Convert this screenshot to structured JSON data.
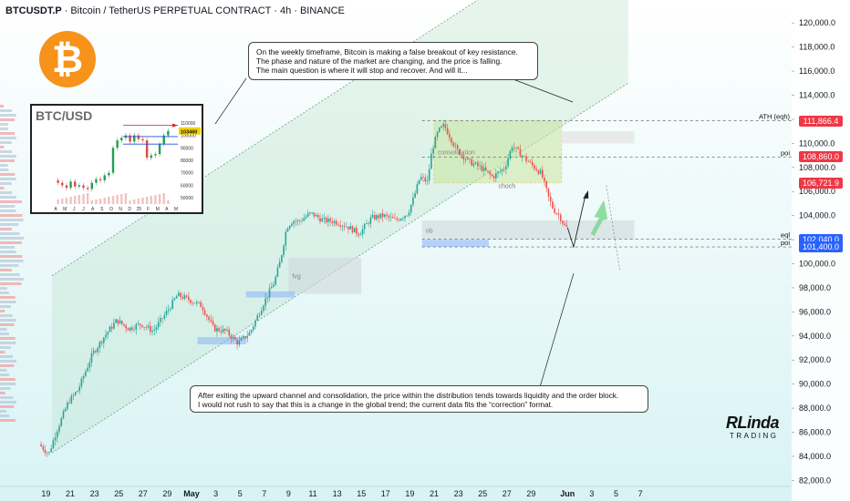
{
  "header": {
    "symbol": "BTCUSDT.P",
    "description": "· Bitcoin / TetherUS PERPETUAL CONTRACT · 4h · BINANCE"
  },
  "chart_data": {
    "type": "candlestick",
    "symbol": "BTCUSDT.P",
    "timeframe": "4h",
    "exchange": "BINANCE",
    "ylim": [
      81500,
      121000
    ],
    "y_ticks": [
      "120,000.0",
      "118,000.0",
      "116,000.0",
      "114,000.0",
      "112,000.0",
      "110,000.0",
      "108,000.0",
      "106,000.0",
      "104,000.0",
      "102,000.0",
      "100,000.0",
      "98,000.0",
      "96,000.0",
      "94,000.0",
      "92,000.0",
      "90,000.0",
      "88,000.0",
      "86,000.0",
      "84,000.0",
      "82,000.0"
    ],
    "x_ticks": [
      "19",
      "21",
      "23",
      "25",
      "27",
      "29",
      "May",
      "3",
      "5",
      "7",
      "9",
      "11",
      "13",
      "15",
      "17",
      "19",
      "21",
      "23",
      "25",
      "27",
      "29",
      "Jun",
      "3",
      "5",
      "7"
    ],
    "x_tick_days": [
      -12,
      -10,
      -8,
      -6,
      -4,
      -2,
      0,
      2,
      4,
      6,
      8,
      10,
      12,
      14,
      16,
      18,
      20,
      22,
      24,
      26,
      28,
      31,
      33,
      35,
      37
    ],
    "price_path": [
      [
        -12.4,
        85000
      ],
      [
        -11.6,
        84200
      ],
      [
        -11,
        86000
      ],
      [
        -10,
        88500
      ],
      [
        -9.2,
        89500
      ],
      [
        -8,
        92500
      ],
      [
        -7,
        94000
      ],
      [
        -6,
        95300
      ],
      [
        -5,
        94600
      ],
      [
        -4,
        95000
      ],
      [
        -3,
        94400
      ],
      [
        -2,
        95800
      ],
      [
        -1,
        97400
      ],
      [
        0,
        97000
      ],
      [
        1,
        96500
      ],
      [
        2,
        94600
      ],
      [
        3,
        94400
      ],
      [
        4,
        93400
      ],
      [
        5,
        94300
      ],
      [
        6,
        96500
      ],
      [
        7,
        98500
      ],
      [
        7.5,
        100300
      ],
      [
        8,
        103000
      ],
      [
        8.5,
        103600
      ],
      [
        9,
        103500
      ],
      [
        10,
        104200
      ],
      [
        11,
        103600
      ],
      [
        12,
        103500
      ],
      [
        13,
        103100
      ],
      [
        14,
        102500
      ],
      [
        15,
        103800
      ],
      [
        16,
        104000
      ],
      [
        17,
        103600
      ],
      [
        18,
        104200
      ],
      [
        18.5,
        105500
      ],
      [
        19,
        107200
      ],
      [
        19.6,
        106800
      ],
      [
        20,
        109500
      ],
      [
        20.5,
        111000
      ],
      [
        21,
        111500
      ],
      [
        21.5,
        110500
      ],
      [
        22,
        109500
      ],
      [
        23,
        108500
      ],
      [
        24,
        108000
      ],
      [
        25,
        107200
      ],
      [
        26,
        108000
      ],
      [
        26.6,
        109800
      ],
      [
        27.2,
        109200
      ],
      [
        28,
        108400
      ],
      [
        29,
        107500
      ],
      [
        29.6,
        105500
      ],
      [
        30,
        104500
      ],
      [
        30.5,
        104000
      ],
      [
        31,
        103000
      ]
    ],
    "price_labels": [
      {
        "text": "111,866.4",
        "value": 111866.4,
        "color": "#f23645"
      },
      {
        "text": "108,860.0",
        "value": 108860,
        "color": "#f23645"
      },
      {
        "text": "106,721.9",
        "value": 106721.9,
        "color": "#f23645"
      },
      {
        "text": "102,040.0",
        "value": 102040,
        "color": "#2962ff"
      },
      {
        "text": "101,400.0",
        "value": 101400,
        "color": "#2962ff"
      }
    ],
    "levels": [
      {
        "label": "ATH (eqh)",
        "value": 111866.4
      },
      {
        "label": "poi",
        "value": 108860
      },
      {
        "label": "eql",
        "value": 102040
      },
      {
        "label": "poi",
        "value": 101400
      }
    ],
    "zones": [
      {
        "label": "consolidation",
        "x0": 20,
        "x1": 30.5,
        "y0": 106721.9,
        "y1": 111866.4,
        "color": "#c8e6a0"
      },
      {
        "label": "fvg",
        "x0": 8,
        "x1": 14,
        "y0": 97500,
        "y1": 100500,
        "color": "#cfd8dc"
      },
      {
        "label": "ob",
        "x0": 19,
        "x1": 36.5,
        "y0": 102040,
        "y1": 103600,
        "color": "#cfd8dc"
      },
      {
        "label": "",
        "x0": 19,
        "x1": 24.5,
        "y0": 101400,
        "y1": 102000,
        "color": "#90b8f8"
      },
      {
        "label": "",
        "x0": 4.5,
        "x1": 8.5,
        "y0": 97200,
        "y1": 97700,
        "color": "#90b8f8"
      },
      {
        "label": "",
        "x0": 0.5,
        "x1": 4.5,
        "y0": 93300,
        "y1": 93900,
        "color": "#90b8f8"
      },
      {
        "label": "",
        "x0": 30.5,
        "x1": 36.5,
        "y0": 110000,
        "y1": 111000,
        "color": "#e0e0e0"
      }
    ],
    "annotations": [
      "choch"
    ],
    "inset": {
      "title": "BTC/USD",
      "y_ticks": [
        "110000",
        "100000",
        "90000",
        "80000",
        "70000",
        "60000",
        "50000"
      ],
      "x_ticks": [
        "A",
        "M",
        "J",
        "J",
        "A",
        "S",
        "O",
        "N",
        "D",
        "25",
        "F",
        "M",
        "A",
        "M"
      ],
      "price_label": "103460",
      "price_path": [
        64,
        62,
        60,
        58,
        63,
        59,
        60,
        58,
        57,
        62,
        65,
        64,
        68,
        70,
        90,
        96,
        98,
        100,
        95,
        100,
        97,
        96,
        82,
        84,
        85,
        93,
        100,
        103.5
      ]
    }
  },
  "callouts": {
    "top": [
      "On the weekly timeframe, Bitcoin is making a false breakout of key resistance.",
      "The phase and nature of the market are changing, and the price is falling.",
      "The main question is where it will stop and recover. And will it..."
    ],
    "bottom": [
      "After exiting the upward channel and consolidation, the price within the distribution tends towards liquidity and the order block.",
      "I would not rush to say that this is a change in the global trend; the current data fits the “correction” format."
    ]
  },
  "logo": {
    "glyph": "₿",
    "color": "#f7931a"
  },
  "watermark": {
    "line1": "RLinda",
    "line2": "TRADING"
  }
}
